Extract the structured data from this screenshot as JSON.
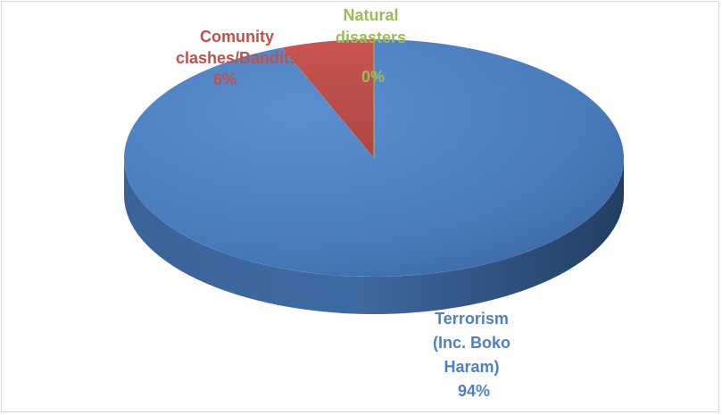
{
  "chart_data": {
    "type": "pie",
    "style": "3d",
    "slices": [
      {
        "label_lines": [
          "Terrorism",
          "(Inc. Boko",
          "Haram)"
        ],
        "value_label": "94%",
        "value": 94,
        "color": "#4f81bd"
      },
      {
        "label_lines": [
          "Comunity",
          "clashes/Bandits"
        ],
        "value_label": "6%",
        "value": 6,
        "color": "#c0504d"
      },
      {
        "label_lines": [
          "Natural",
          "disasters"
        ],
        "value_label": "0%",
        "value": 0,
        "color": "#9bbb59"
      }
    ],
    "legend": "none",
    "title": ""
  }
}
